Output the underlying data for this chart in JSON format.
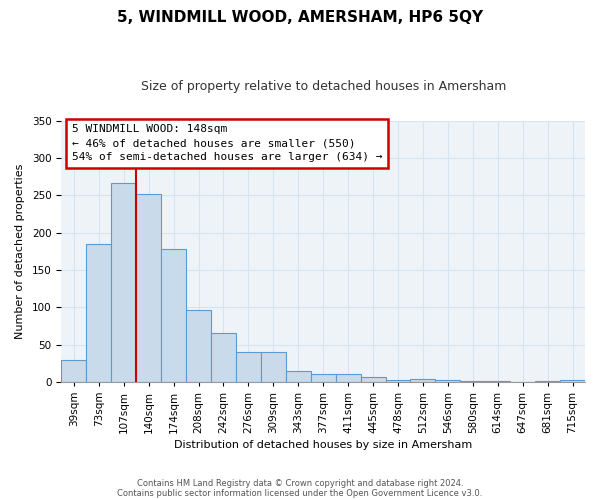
{
  "title": "5, WINDMILL WOOD, AMERSHAM, HP6 5QY",
  "subtitle": "Size of property relative to detached houses in Amersham",
  "xlabel": "Distribution of detached houses by size in Amersham",
  "ylabel": "Number of detached properties",
  "bar_labels": [
    "39sqm",
    "73sqm",
    "107sqm",
    "140sqm",
    "174sqm",
    "208sqm",
    "242sqm",
    "276sqm",
    "309sqm",
    "343sqm",
    "377sqm",
    "411sqm",
    "445sqm",
    "478sqm",
    "512sqm",
    "546sqm",
    "580sqm",
    "614sqm",
    "647sqm",
    "681sqm",
    "715sqm"
  ],
  "bar_values": [
    30,
    185,
    267,
    252,
    178,
    96,
    65,
    40,
    40,
    14,
    10,
    10,
    6,
    3,
    4,
    2,
    1,
    1,
    0,
    1,
    2
  ],
  "bar_color": "#c9daea",
  "bar_edge_color": "#5b9bd5",
  "vline_color": "#cc0000",
  "vline_x_index": 3,
  "annotation_text": "5 WINDMILL WOOD: 148sqm\n← 46% of detached houses are smaller (550)\n54% of semi-detached houses are larger (634) →",
  "annotation_box_color": "#ffffff",
  "annotation_box_edge": "#cc0000",
  "ylim": [
    0,
    350
  ],
  "yticks": [
    0,
    50,
    100,
    150,
    200,
    250,
    300,
    350
  ],
  "footer1": "Contains HM Land Registry data © Crown copyright and database right 2024.",
  "footer2": "Contains public sector information licensed under the Open Government Licence v3.0.",
  "grid_color": "#d4e4f0",
  "background_color": "#eef3f8",
  "title_fontsize": 11,
  "subtitle_fontsize": 9,
  "axis_label_fontsize": 8,
  "tick_fontsize": 7.5,
  "footer_fontsize": 6,
  "ann_fontsize": 8
}
